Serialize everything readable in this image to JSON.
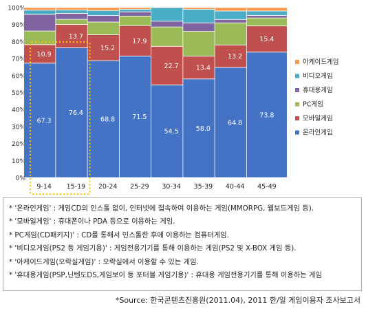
{
  "chart_data": {
    "type": "bar",
    "stacked": true,
    "percent": true,
    "categories": [
      "9-14",
      "15-19",
      "20-24",
      "25-29",
      "30-34",
      "35-39",
      "40-44",
      "45-49"
    ],
    "series": [
      {
        "name": "온라인게임",
        "color": "#4472c4",
        "values": [
          67.3,
          76.4,
          68.8,
          71.5,
          54.5,
          58.0,
          64.8,
          73.8
        ],
        "labels": [
          "67.3",
          "76.4",
          "68.8",
          "71.5",
          "54.5",
          "58.0",
          "64.8",
          "73.8"
        ]
      },
      {
        "name": "모바일게임",
        "color": "#c0504d",
        "values": [
          10.9,
          13.7,
          15.2,
          17.9,
          22.7,
          13.4,
          13.2,
          15.4
        ],
        "labels": [
          "10.9",
          "13.7",
          "15.2",
          "17.9",
          "22.7",
          "13.4",
          "13.2",
          "15.4"
        ]
      },
      {
        "name": "PC게임",
        "color": "#9bbb59",
        "values": [
          8.0,
          3.0,
          7.5,
          5.6,
          11.4,
          14.6,
          13.0,
          4.7
        ],
        "labels": [
          "",
          "",
          "",
          "",
          "",
          "",
          "",
          ""
        ]
      },
      {
        "name": "휴대용게임",
        "color": "#8064a2",
        "values": [
          9.8,
          3.5,
          3.8,
          2.5,
          3.4,
          5.0,
          2.0,
          1.5
        ],
        "labels": [
          "",
          "",
          "",
          "",
          "",
          "",
          "",
          ""
        ]
      },
      {
        "name": "비디오게임",
        "color": "#4bacc6",
        "values": [
          2.5,
          2.0,
          3.0,
          1.5,
          8.0,
          8.0,
          5.0,
          2.6
        ],
        "labels": [
          "",
          "",
          "",
          "",
          "",
          "",
          "",
          ""
        ]
      },
      {
        "name": "아케이드게임",
        "color": "#f79646",
        "values": [
          1.5,
          1.4,
          1.7,
          1.0,
          0.0,
          1.0,
          2.0,
          2.0
        ],
        "labels": [
          "",
          "",
          "",
          "",
          "",
          "",
          "",
          ""
        ]
      }
    ],
    "legend_order": [
      "아케이드게임",
      "비디오게임",
      "휴대용게임",
      "PC게임",
      "모바일게임",
      "온라인게임"
    ],
    "y_ticks": [
      "0%",
      "10%",
      "20%",
      "30%",
      "40%",
      "50%",
      "60%",
      "70%",
      "80%",
      "90%",
      "100%"
    ],
    "ylim": [
      0,
      100
    ],
    "grid": true,
    "legend_position": "right",
    "highlight_categories": [
      "9-14",
      "15-19"
    ],
    "highlight_color": "#ffc000"
  },
  "notes": [
    "* '온라인게임' : 게임CD의 인스톨 없이, 인터넷에 접속하여 이용하는 게임(MMORPG, 웹보드게임 등).",
    "* '모바일게임' : 휴대폰이나 PDA 등으로 이용하는 게임.",
    "* PC게임(CD패키지)' : CD를 통해서 인스톨한 후에 이용하는 컴퓨터게임.",
    "* '비디오게임(PS2 등 게임기용)' : 게임전용기기를 통해 이용하는 게임(PS2 및 X-BOX 게임 등).",
    "* '아케이드게임(오락실게임)' : 오락실에서 이용할 수 있는 게임.",
    "* '휴대용게임(PSP,닌텐도DS,게임보이 등 포터블 게임기용)' : 휴대용 게임전용기기를 통해 이용하는 게임"
  ],
  "source": "*Source: 한국콘텐츠진흥원(2011.04), 2011 한/일 게임이용자 조사보고서"
}
